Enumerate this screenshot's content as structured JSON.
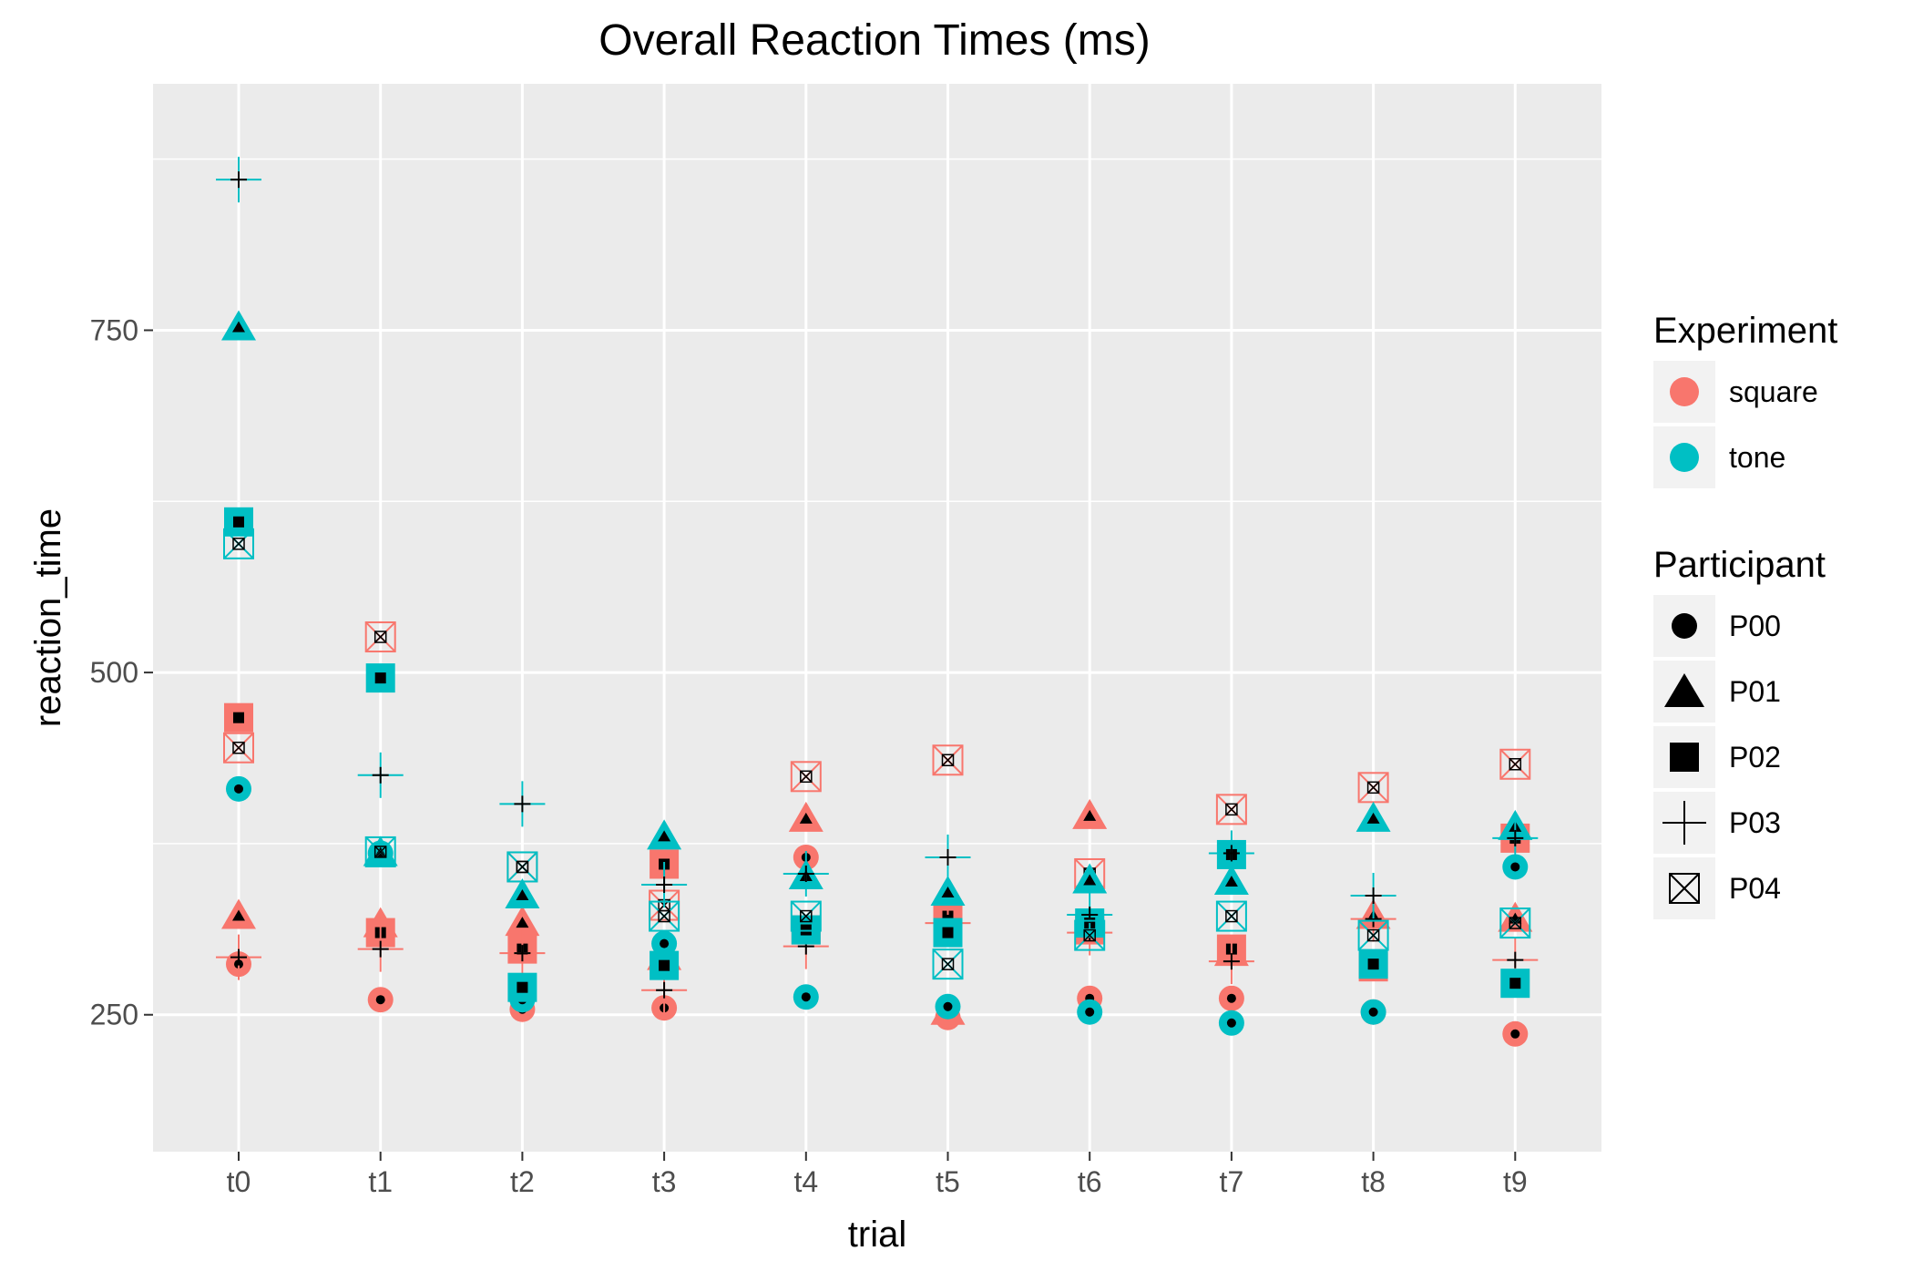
{
  "chart_data": {
    "type": "scatter",
    "title": "Overall Reaction Times (ms)",
    "xlabel": "trial",
    "ylabel": "reaction_time",
    "categories": [
      "t0",
      "t1",
      "t2",
      "t3",
      "t4",
      "t5",
      "t6",
      "t7",
      "t8",
      "t9"
    ],
    "ylim": [
      150,
      930
    ],
    "yticks": [
      250,
      500,
      750
    ],
    "grid": true,
    "legend_position": "right",
    "colors": {
      "square": "#F8766D",
      "tone": "#00BFC4",
      "panel": "#EBEBEB",
      "grid": "#FFFFFF"
    },
    "legends": {
      "experiment": {
        "title": "Experiment",
        "items": [
          "square",
          "tone"
        ]
      },
      "participant": {
        "title": "Participant",
        "items": [
          "P00",
          "P01",
          "P02",
          "P03",
          "P04"
        ]
      }
    },
    "series": [
      {
        "experiment": "square",
        "participant": "P00",
        "shape": "circle",
        "values": [
          287,
          261,
          254,
          255,
          365,
          248,
          262,
          262,
          252,
          236
        ]
      },
      {
        "experiment": "square",
        "participant": "P01",
        "shape": "triangle",
        "values": [
          322,
          316,
          317,
          292,
          393,
          252,
          395,
          295,
          322,
          320
        ]
      },
      {
        "experiment": "square",
        "participant": "P02",
        "shape": "square",
        "values": [
          467,
          310,
          298,
          360,
          312,
          322,
          312,
          298,
          285,
          379
        ]
      },
      {
        "experiment": "square",
        "participant": "P03",
        "shape": "plus",
        "values": [
          292,
          298,
          295,
          268,
          300,
          317,
          310,
          289,
          320,
          290
        ]
      },
      {
        "experiment": "square",
        "participant": "P04",
        "shape": "boxx",
        "values": [
          445,
          526,
          358,
          330,
          424,
          436,
          353,
          400,
          416,
          433
        ]
      },
      {
        "experiment": "tone",
        "participant": "P00",
        "shape": "circle",
        "values": [
          415,
          368,
          261,
          302,
          263,
          256,
          252,
          244,
          252,
          358
        ]
      },
      {
        "experiment": "tone",
        "participant": "P01",
        "shape": "triangle",
        "values": [
          752,
          368,
          337,
          380,
          351,
          339,
          348,
          347,
          393,
          387
        ]
      },
      {
        "experiment": "tone",
        "participant": "P02",
        "shape": "square",
        "values": [
          610,
          496,
          270,
          286,
          312,
          310,
          317,
          367,
          287,
          273
        ]
      },
      {
        "experiment": "tone",
        "participant": "P03",
        "shape": "plus",
        "values": [
          860,
          425,
          404,
          345,
          353,
          365,
          323,
          368,
          337,
          379
        ]
      },
      {
        "experiment": "tone",
        "participant": "P04",
        "shape": "boxx",
        "values": [
          594,
          369,
          358,
          322,
          322,
          287,
          308,
          322,
          308,
          317
        ]
      }
    ]
  }
}
